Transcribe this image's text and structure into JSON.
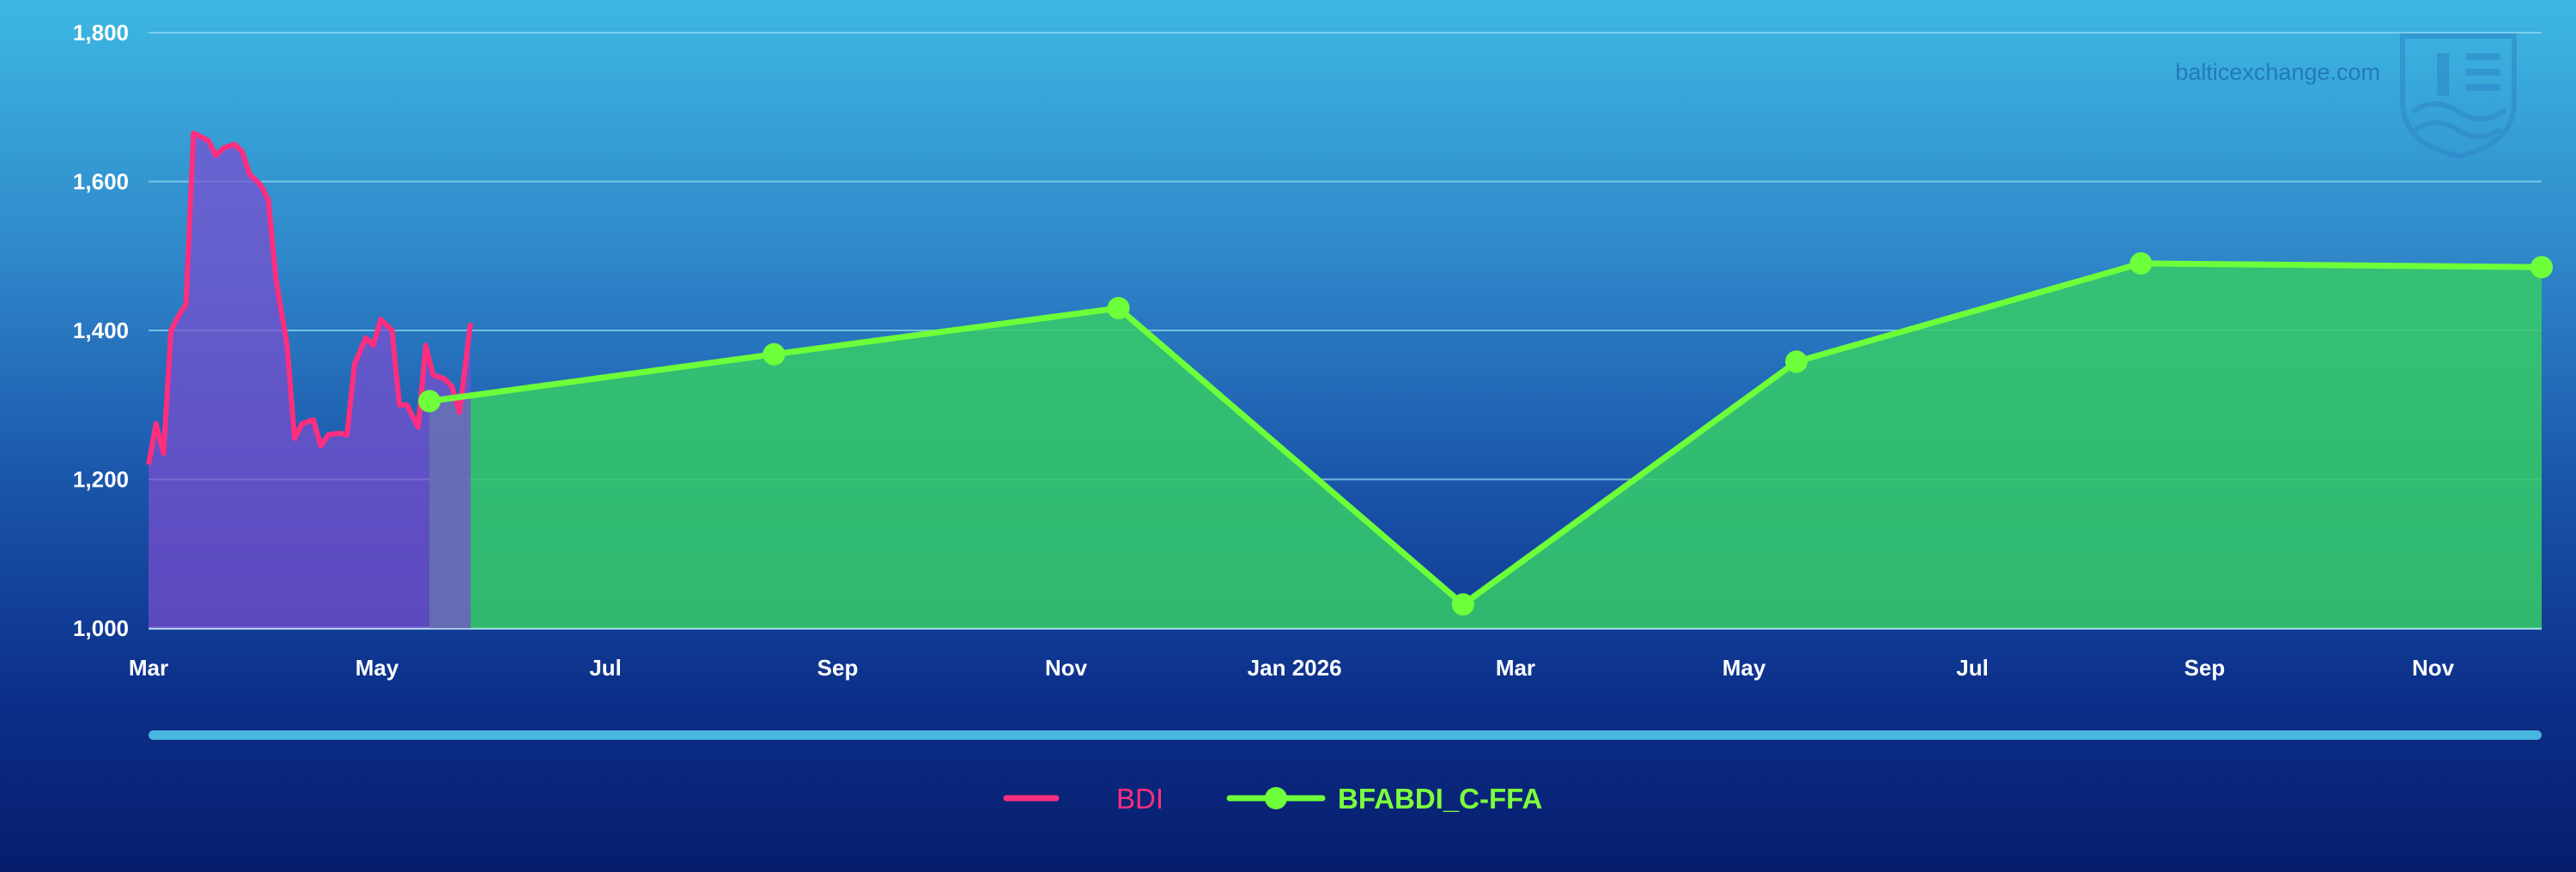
{
  "watermark": {
    "text": "balticexchange.com",
    "logo_icon": "baltic-exchange-shield-icon"
  },
  "colors": {
    "bdi_line": "#ff2e7e",
    "bdi_fill": "#7a4fcf",
    "ffa_line": "#6dff3a",
    "ffa_fill": "#35c96a",
    "gridline": "#8fd6ef",
    "scrollbar": "#47b7e0"
  },
  "chart_data": {
    "type": "area",
    "x_axis": {
      "type": "date",
      "range": [
        "2025-03-01",
        "2026-11-30"
      ],
      "tick_labels": [
        {
          "date": "2025-03-01",
          "label": "Mar"
        },
        {
          "date": "2025-05-01",
          "label": "May"
        },
        {
          "date": "2025-07-01",
          "label": "Jul"
        },
        {
          "date": "2025-09-01",
          "label": "Sep"
        },
        {
          "date": "2025-11-01",
          "label": "Nov"
        },
        {
          "date": "2026-01-01",
          "label": "Jan 2026"
        },
        {
          "date": "2026-03-01",
          "label": "Mar"
        },
        {
          "date": "2026-05-01",
          "label": "May"
        },
        {
          "date": "2026-07-01",
          "label": "Jul"
        },
        {
          "date": "2026-09-01",
          "label": "Sep"
        },
        {
          "date": "2026-11-01",
          "label": "Nov"
        }
      ]
    },
    "y_axis": {
      "range": [
        1000,
        1800
      ],
      "ticks": [
        1000,
        1200,
        1400,
        1600,
        1800
      ],
      "tick_labels": [
        "1,000",
        "1,200",
        "1,400",
        "1,600",
        "1,800"
      ]
    },
    "grid": true,
    "legend_position": "bottom-center",
    "series": [
      {
        "name": "BDI",
        "type": "area",
        "points": [
          [
            "2025-03-01",
            1220
          ],
          [
            "2025-03-03",
            1275
          ],
          [
            "2025-03-05",
            1235
          ],
          [
            "2025-03-07",
            1400
          ],
          [
            "2025-03-09",
            1420
          ],
          [
            "2025-03-11",
            1435
          ],
          [
            "2025-03-13",
            1665
          ],
          [
            "2025-03-15",
            1660
          ],
          [
            "2025-03-17",
            1655
          ],
          [
            "2025-03-19",
            1635
          ],
          [
            "2025-03-21",
            1645
          ],
          [
            "2025-03-24",
            1650
          ],
          [
            "2025-03-26",
            1640
          ],
          [
            "2025-03-28",
            1610
          ],
          [
            "2025-03-31",
            1595
          ],
          [
            "2025-04-02",
            1575
          ],
          [
            "2025-04-04",
            1470
          ],
          [
            "2025-04-07",
            1380
          ],
          [
            "2025-04-09",
            1255
          ],
          [
            "2025-04-11",
            1275
          ],
          [
            "2025-04-14",
            1280
          ],
          [
            "2025-04-16",
            1245
          ],
          [
            "2025-04-18",
            1260
          ],
          [
            "2025-04-21",
            1262
          ],
          [
            "2025-04-23",
            1260
          ],
          [
            "2025-04-25",
            1355
          ],
          [
            "2025-04-28",
            1390
          ],
          [
            "2025-04-30",
            1380
          ],
          [
            "2025-05-02",
            1415
          ],
          [
            "2025-05-05",
            1400
          ],
          [
            "2025-05-07",
            1300
          ],
          [
            "2025-05-09",
            1300
          ],
          [
            "2025-05-12",
            1270
          ],
          [
            "2025-05-14",
            1380
          ],
          [
            "2025-05-16",
            1340
          ],
          [
            "2025-05-19",
            1335
          ],
          [
            "2025-05-21",
            1325
          ],
          [
            "2025-05-23",
            1290
          ],
          [
            "2025-05-26",
            1410
          ]
        ]
      },
      {
        "name": "BFABDI_C-FFA",
        "type": "area",
        "markers": true,
        "points": [
          [
            "2025-05-15",
            1305
          ],
          [
            "2025-08-15",
            1368
          ],
          [
            "2025-11-15",
            1430
          ],
          [
            "2026-02-15",
            1032
          ],
          [
            "2026-05-15",
            1358
          ],
          [
            "2026-08-15",
            1490
          ],
          [
            "2026-11-30",
            1485
          ]
        ]
      }
    ]
  }
}
